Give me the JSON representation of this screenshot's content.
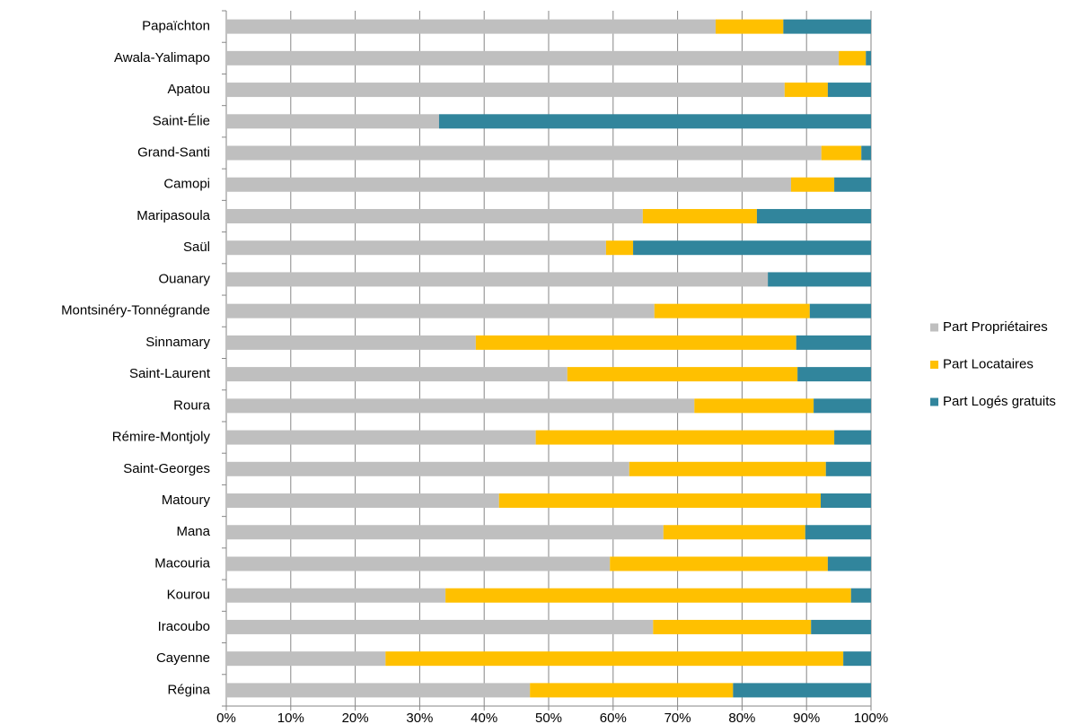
{
  "chart_data": {
    "type": "stacked-bar-horizontal",
    "categories": [
      "Papaïchton",
      "Awala-Yalimapo",
      "Apatou",
      "Saint-Élie",
      "Grand-Santi",
      "Camopi",
      "Maripasoula",
      "Saül",
      "Ouanary",
      "Montsinéry-Tonnégrande",
      "Sinnamary",
      "Saint-Laurent",
      "Roura",
      "Rémire-Montjoly",
      "Saint-Georges",
      "Matoury",
      "Mana",
      "Macouria",
      "Kourou",
      "Iracoubo",
      "Cayenne",
      "Régina"
    ],
    "series": [
      {
        "name": "Part Propriétaires",
        "color": "#bfbfbf",
        "values": [
          75.9,
          95.0,
          86.6,
          33.0,
          92.3,
          87.6,
          64.6,
          58.9,
          84.0,
          66.4,
          38.7,
          52.9,
          72.6,
          48.0,
          62.5,
          42.3,
          67.8,
          59.5,
          34.0,
          66.2,
          24.7,
          47.1
        ]
      },
      {
        "name": "Part Locataires",
        "color": "#ffc000",
        "values": [
          10.5,
          4.2,
          6.7,
          0,
          6.2,
          6.7,
          17.7,
          4.2,
          0,
          24.1,
          49.7,
          35.7,
          18.5,
          46.3,
          30.5,
          49.9,
          22.0,
          33.8,
          62.9,
          24.5,
          71.0,
          31.5
        ]
      },
      {
        "name": "Part Logés gratuits",
        "color": "#31859c",
        "values": [
          13.6,
          0.8,
          6.7,
          67.0,
          1.5,
          5.7,
          17.7,
          36.9,
          16.0,
          9.5,
          11.6,
          11.4,
          8.9,
          5.7,
          7.0,
          7.8,
          10.2,
          6.7,
          3.1,
          9.3,
          4.3,
          21.4
        ]
      }
    ],
    "xlim": [
      0,
      100
    ],
    "xticks": [
      {
        "value": 0,
        "label": "0%"
      },
      {
        "value": 10,
        "label": "10%"
      },
      {
        "value": 20,
        "label": "20%"
      },
      {
        "value": 30,
        "label": "30%"
      },
      {
        "value": 40,
        "label": "40%"
      },
      {
        "value": 50,
        "label": "50%"
      },
      {
        "value": 60,
        "label": "60%"
      },
      {
        "value": 70,
        "label": "70%"
      },
      {
        "value": 80,
        "label": "80%"
      },
      {
        "value": 90,
        "label": "90%"
      },
      {
        "value": 100,
        "label": "100%"
      }
    ],
    "grid": true,
    "legend": "right"
  }
}
